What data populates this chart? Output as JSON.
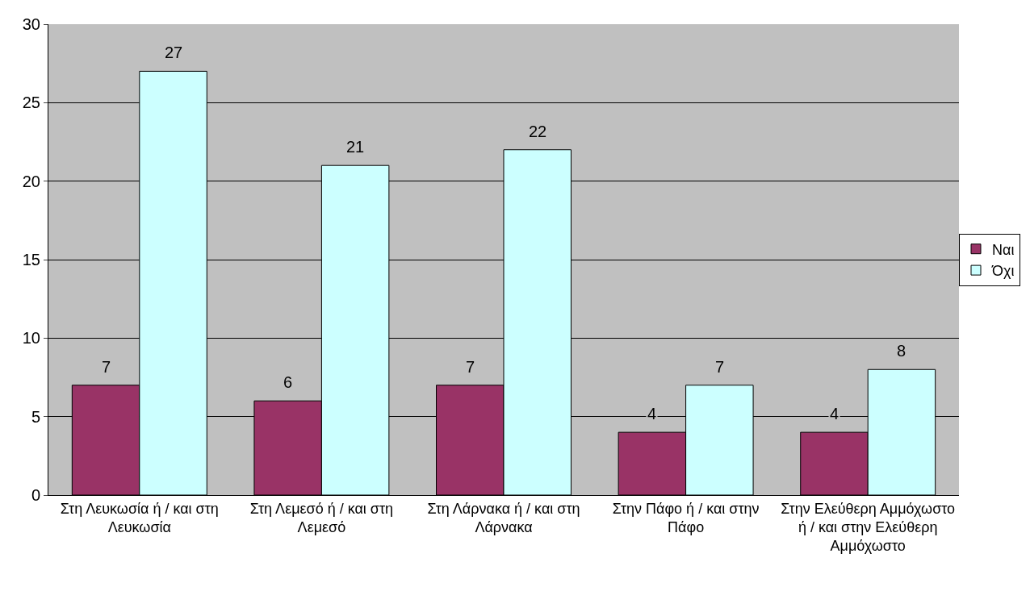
{
  "chart_data": {
    "type": "bar",
    "categories": [
      "Στη Λευκωσία ή / και στη Λευκωσία",
      "Στη Λεμεσό ή / και στη Λεμεσό",
      "Στη Λάρνακα ή / και στη Λάρνακα",
      "Στην Πάφο ή / και στην Πάφο",
      "Στην Ελεύθερη Αμμόχωστο ή / και στην Ελεύθερη Αμμόχωστο"
    ],
    "series": [
      {
        "name": "Ναι",
        "color": "#993366",
        "values": [
          7,
          6,
          7,
          4,
          4
        ]
      },
      {
        "name": "Όχι",
        "color": "#ccffff",
        "values": [
          27,
          21,
          22,
          7,
          8
        ]
      }
    ],
    "ylim": [
      0,
      30
    ],
    "yticks": [
      0,
      5,
      10,
      15,
      20,
      25,
      30
    ],
    "grid": "y",
    "legend": "right",
    "data_labels": true
  }
}
